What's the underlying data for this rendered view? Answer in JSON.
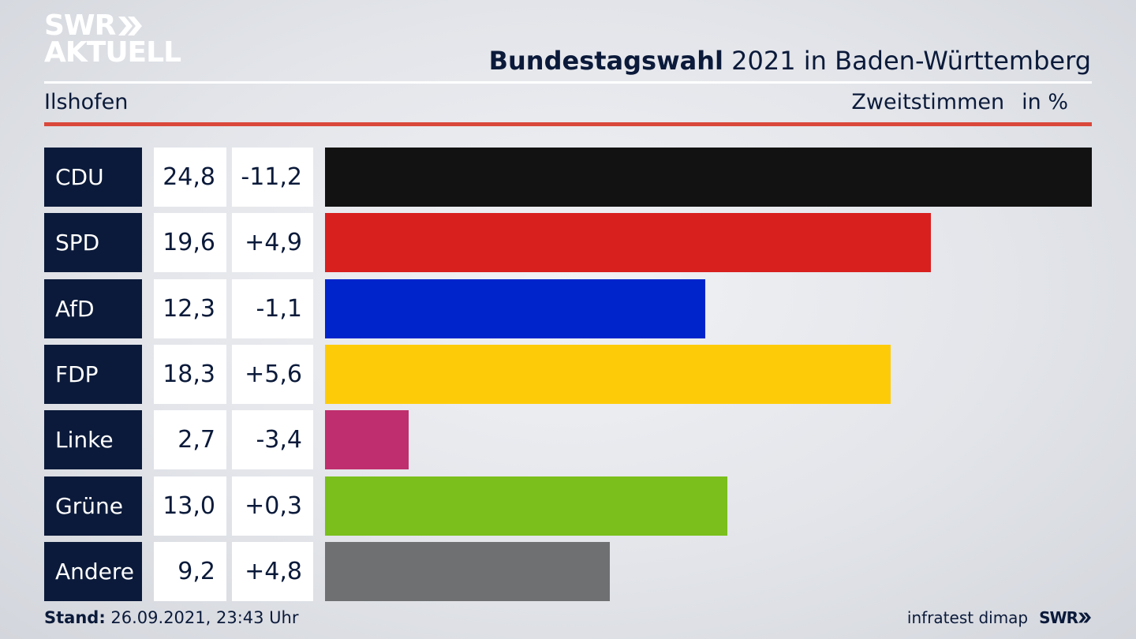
{
  "logo": {
    "line1": "SWR",
    "line2": "AKTUELL"
  },
  "header": {
    "title_bold": "Bundestagswahl",
    "title_rest": " 2021 in Baden-Württemberg",
    "region": "Ilshofen",
    "measure": "Zweitstimmen",
    "unit": "in %"
  },
  "chart_data": {
    "type": "bar",
    "orientation": "horizontal",
    "categories": [
      "CDU",
      "SPD",
      "AfD",
      "FDP",
      "Linke",
      "Grüne",
      "Andere"
    ],
    "values": [
      24.8,
      19.6,
      12.3,
      18.3,
      2.7,
      13.0,
      9.2
    ],
    "value_labels": [
      "24,8",
      "19,6",
      "12,3",
      "18,3",
      "2,7",
      "13,0",
      "9,2"
    ],
    "change_labels": [
      "-11,2",
      "+4,9",
      "-1,1",
      "+5,6",
      "-3,4",
      "+0,3",
      "+4,8"
    ],
    "colors": [
      "#121212",
      "#d8201f",
      "#0024cc",
      "#fecb09",
      "#bf2e6e",
      "#7abf1b",
      "#6f7072"
    ]
  },
  "footer": {
    "stand_label": "Stand:",
    "stand_value": " 26.09.2021, 23:43 Uhr",
    "source": "infratest dimap",
    "brand": "SWR"
  }
}
